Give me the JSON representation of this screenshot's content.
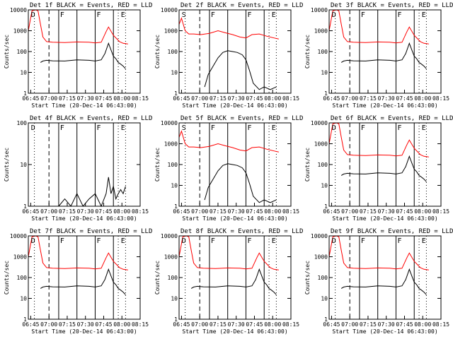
{
  "chart_data": [
    {
      "title": "Det 1f BLACK = Events, RED = LLD",
      "ylabel": "Counts/sec",
      "xlabel": "Start Time (20-Dec-14 06:43:00)",
      "type": "line",
      "yscale": "log",
      "ylim": [
        1,
        10000
      ],
      "yticks": [
        "1",
        "10",
        "100",
        "1000",
        "10000"
      ],
      "xticks": [
        "06:45",
        "07:00",
        "07:15",
        "07:30",
        "07:45",
        "08:00",
        "08:15"
      ],
      "markers": [
        "D",
        "F",
        "F",
        "E"
      ],
      "series": [
        {
          "color": "#ff0000",
          "x": [
            0,
            3,
            6,
            8,
            10,
            12,
            15,
            20,
            30,
            40,
            50,
            55,
            60,
            64,
            66,
            70,
            75,
            78,
            80,
            82
          ],
          "values": [
            1000,
            9000,
            10000,
            9000,
            2000,
            500,
            300,
            280,
            270,
            290,
            280,
            260,
            280,
            900,
            1500,
            600,
            300,
            250,
            240,
            230
          ]
        },
        {
          "color": "#000000",
          "x": [
            10,
            12,
            15,
            20,
            30,
            40,
            50,
            55,
            60,
            63,
            66,
            68,
            70,
            72,
            74,
            76,
            78,
            80
          ],
          "values": [
            30,
            35,
            38,
            36,
            35,
            40,
            38,
            35,
            40,
            80,
            250,
            120,
            60,
            45,
            30,
            25,
            20,
            15
          ]
        }
      ]
    },
    {
      "title": "Det 2f BLACK = Events, RED = LLD",
      "ylabel": "Counts/sec",
      "xlabel": "Start Time (20-Dec-14 06:43:00)",
      "type": "line",
      "yscale": "log",
      "ylim": [
        1,
        10000
      ],
      "yticks": [
        "1",
        "10",
        "100",
        "1000",
        "10000"
      ],
      "xticks": [
        "06:45",
        "07:00",
        "07:15",
        "07:30",
        "07:45",
        "08:00",
        "08:15"
      ],
      "markers": [
        "S",
        "F",
        "F",
        "E"
      ],
      "series": [
        {
          "color": "#ff0000",
          "x": [
            0,
            2,
            5,
            8,
            12,
            18,
            25,
            32,
            38,
            44,
            50,
            55,
            60,
            66,
            72,
            78,
            82
          ],
          "values": [
            2000,
            4000,
            1000,
            700,
            700,
            650,
            750,
            1000,
            800,
            650,
            500,
            450,
            650,
            700,
            550,
            450,
            400
          ]
        },
        {
          "color": "#000000",
          "x": [
            21,
            24,
            28,
            32,
            36,
            40,
            44,
            48,
            52,
            55,
            58,
            61,
            66,
            70,
            75,
            80
          ],
          "values": [
            2,
            8,
            20,
            50,
            90,
            110,
            100,
            90,
            70,
            40,
            12,
            3,
            1.5,
            2,
            1.5,
            2
          ]
        }
      ]
    },
    {
      "title": "Det 3f BLACK = Events, RED = LLD",
      "ylabel": "Counts/sec",
      "xlabel": "Start Time (20-Dec-14 06:43:00)",
      "type": "line",
      "yscale": "log",
      "ylim": [
        1,
        10000
      ],
      "yticks": [
        "1",
        "10",
        "100",
        "1000",
        "10000"
      ],
      "xticks": [
        "06:45",
        "07:00",
        "07:15",
        "07:30",
        "07:45",
        "08:00",
        "08:15"
      ],
      "markers": [
        "D",
        "F",
        "F",
        "E"
      ],
      "series": [
        {
          "color": "#ff0000",
          "x": [
            0,
            3,
            6,
            8,
            10,
            12,
            15,
            20,
            30,
            40,
            50,
            55,
            60,
            64,
            66,
            70,
            75,
            78,
            80,
            82
          ],
          "values": [
            1000,
            9000,
            10000,
            9000,
            2000,
            500,
            300,
            280,
            270,
            290,
            280,
            260,
            280,
            900,
            1500,
            600,
            300,
            250,
            240,
            230
          ]
        },
        {
          "color": "#000000",
          "x": [
            10,
            12,
            15,
            20,
            30,
            40,
            50,
            55,
            60,
            63,
            66,
            68,
            70,
            72,
            74,
            76,
            78,
            80
          ],
          "values": [
            30,
            35,
            38,
            36,
            35,
            40,
            38,
            35,
            40,
            80,
            250,
            120,
            60,
            45,
            30,
            25,
            20,
            15
          ]
        }
      ]
    },
    {
      "title": "Det 4f BLACK = Events, RED = LLD",
      "ylabel": "Counts/sec",
      "xlabel": "Start Time (20-Dec-14 06:43:00)",
      "type": "line",
      "yscale": "log",
      "ylim": [
        1,
        100
      ],
      "yticks": [
        "1",
        "10",
        "100"
      ],
      "xticks": [
        "06:45",
        "07:00",
        "07:15",
        "07:30",
        "07:45",
        "08:00",
        "08:15"
      ],
      "markers": [
        "D",
        "F",
        "F",
        "E"
      ],
      "series": [
        {
          "color": "#000000",
          "x": [
            25,
            30,
            35,
            40,
            45,
            50,
            55,
            60,
            64,
            66,
            68,
            70,
            72,
            74,
            76,
            78,
            80
          ],
          "values": [
            1,
            1.5,
            1,
            2,
            1,
            1.5,
            2,
            1,
            2,
            5,
            2,
            3,
            1.5,
            2,
            2.5,
            2,
            3
          ]
        }
      ]
    },
    {
      "title": "Det 5f BLACK = Events, RED = LLD",
      "ylabel": "Counts/sec",
      "xlabel": "Start Time (20-Dec-14 06:43:00)",
      "type": "line",
      "yscale": "log",
      "ylim": [
        1,
        10000
      ],
      "yticks": [
        "1",
        "10",
        "100",
        "1000",
        "10000"
      ],
      "xticks": [
        "06:45",
        "07:00",
        "07:15",
        "07:30",
        "07:45",
        "08:00",
        "08:15"
      ],
      "markers": [
        "S",
        "F",
        "F",
        "E"
      ],
      "series": [
        {
          "color": "#ff0000",
          "x": [
            0,
            2,
            5,
            8,
            12,
            18,
            25,
            32,
            38,
            44,
            50,
            55,
            60,
            66,
            72,
            78,
            82
          ],
          "values": [
            2000,
            4000,
            1000,
            700,
            700,
            650,
            750,
            1000,
            800,
            650,
            500,
            450,
            650,
            700,
            550,
            450,
            400
          ]
        },
        {
          "color": "#000000",
          "x": [
            21,
            24,
            28,
            32,
            36,
            40,
            44,
            48,
            52,
            55,
            58,
            61,
            66,
            70,
            75,
            80
          ],
          "values": [
            2,
            8,
            20,
            50,
            90,
            110,
            100,
            90,
            70,
            40,
            12,
            3,
            1.5,
            2,
            1.5,
            2
          ]
        }
      ]
    },
    {
      "title": "Det 6f BLACK = Events, RED = LLD",
      "ylabel": "Counts/sec",
      "xlabel": "Start Time (20-Dec-14 06:43:00)",
      "type": "line",
      "yscale": "log",
      "ylim": [
        1,
        10000
      ],
      "yticks": [
        "1",
        "10",
        "100",
        "1000",
        "10000"
      ],
      "xticks": [
        "06:45",
        "07:00",
        "07:15",
        "07:30",
        "07:45",
        "08:00",
        "08:15"
      ],
      "markers": [
        "D",
        "F",
        "F",
        "E"
      ],
      "series": [
        {
          "color": "#ff0000",
          "x": [
            0,
            3,
            6,
            8,
            10,
            12,
            15,
            20,
            30,
            40,
            50,
            55,
            60,
            64,
            66,
            70,
            75,
            78,
            80,
            82
          ],
          "values": [
            1000,
            9000,
            10000,
            9000,
            2000,
            500,
            300,
            280,
            270,
            290,
            280,
            260,
            280,
            900,
            1500,
            600,
            300,
            250,
            240,
            230
          ]
        },
        {
          "color": "#000000",
          "x": [
            10,
            12,
            15,
            20,
            30,
            40,
            50,
            55,
            60,
            63,
            66,
            68,
            70,
            72,
            74,
            76,
            78,
            80
          ],
          "values": [
            30,
            35,
            38,
            36,
            35,
            40,
            38,
            35,
            40,
            80,
            250,
            120,
            60,
            45,
            30,
            25,
            20,
            15
          ]
        }
      ]
    },
    {
      "title": "Det 7f BLACK = Events, RED = LLD",
      "ylabel": "Counts/sec",
      "xlabel": "Start Time (20-Dec-14 06:43:00)",
      "type": "line",
      "yscale": "log",
      "ylim": [
        1,
        10000
      ],
      "yticks": [
        "1",
        "10",
        "100",
        "1000",
        "10000"
      ],
      "xticks": [
        "06:45",
        "07:00",
        "07:15",
        "07:30",
        "07:45",
        "08:00",
        "08:15"
      ],
      "markers": [
        "D",
        "F",
        "F",
        "E"
      ],
      "series": [
        {
          "color": "#ff0000",
          "x": [
            0,
            3,
            6,
            8,
            10,
            12,
            15,
            20,
            30,
            40,
            50,
            55,
            60,
            64,
            66,
            70,
            75,
            78,
            80,
            82
          ],
          "values": [
            1000,
            9000,
            10000,
            9000,
            2000,
            500,
            300,
            280,
            270,
            290,
            280,
            260,
            280,
            900,
            1500,
            600,
            300,
            250,
            240,
            230
          ]
        },
        {
          "color": "#000000",
          "x": [
            10,
            12,
            15,
            20,
            30,
            40,
            50,
            55,
            60,
            63,
            66,
            68,
            70,
            72,
            74,
            76,
            78,
            80
          ],
          "values": [
            30,
            35,
            38,
            36,
            35,
            40,
            38,
            35,
            40,
            80,
            250,
            120,
            60,
            45,
            30,
            25,
            20,
            15
          ]
        }
      ]
    },
    {
      "title": "Det 8f BLACK = Events, RED = LLD",
      "ylabel": "Counts/sec",
      "xlabel": "Start Time (20-Dec-14 06:43:00)",
      "type": "line",
      "yscale": "log",
      "ylim": [
        1,
        10000
      ],
      "yticks": [
        "1",
        "10",
        "100",
        "1000",
        "10000"
      ],
      "xticks": [
        "06:45",
        "07:00",
        "07:15",
        "07:30",
        "07:45",
        "08:00",
        "08:15"
      ],
      "markers": [
        "D",
        "F",
        "F",
        "E"
      ],
      "series": [
        {
          "color": "#ff0000",
          "x": [
            0,
            3,
            6,
            8,
            10,
            12,
            15,
            20,
            30,
            40,
            50,
            55,
            60,
            64,
            66,
            70,
            75,
            78,
            80,
            82
          ],
          "values": [
            1000,
            9000,
            10000,
            9000,
            2000,
            500,
            300,
            280,
            270,
            290,
            280,
            260,
            280,
            900,
            1500,
            600,
            300,
            250,
            240,
            230
          ]
        },
        {
          "color": "#000000",
          "x": [
            10,
            12,
            15,
            20,
            30,
            40,
            50,
            55,
            60,
            63,
            66,
            68,
            70,
            72,
            74,
            76,
            78,
            80
          ],
          "values": [
            30,
            35,
            38,
            36,
            35,
            40,
            38,
            35,
            40,
            80,
            250,
            120,
            60,
            45,
            30,
            25,
            20,
            15
          ]
        }
      ]
    },
    {
      "title": "Det 9f BLACK = Events, RED = LLD",
      "ylabel": "Counts/sec",
      "xlabel": "Start Time (20-Dec-14 06:43:00)",
      "type": "line",
      "yscale": "log",
      "ylim": [
        1,
        10000
      ],
      "yticks": [
        "1",
        "10",
        "100",
        "1000",
        "10000"
      ],
      "xticks": [
        "06:45",
        "07:00",
        "07:15",
        "07:30",
        "07:45",
        "08:00",
        "08:15"
      ],
      "markers": [
        "D",
        "F",
        "F",
        "E"
      ],
      "series": [
        {
          "color": "#ff0000",
          "x": [
            0,
            3,
            6,
            8,
            10,
            12,
            15,
            20,
            30,
            40,
            50,
            55,
            60,
            64,
            66,
            70,
            75,
            78,
            80,
            82
          ],
          "values": [
            1000,
            9000,
            10000,
            9000,
            2000,
            500,
            300,
            280,
            270,
            290,
            280,
            260,
            280,
            900,
            1500,
            600,
            300,
            250,
            240,
            230
          ]
        },
        {
          "color": "#000000",
          "x": [
            10,
            12,
            15,
            20,
            30,
            40,
            50,
            55,
            60,
            63,
            66,
            68,
            70,
            72,
            74,
            76,
            78,
            80
          ],
          "values": [
            30,
            35,
            38,
            36,
            35,
            40,
            38,
            35,
            40,
            80,
            250,
            120,
            60,
            45,
            30,
            25,
            20,
            15
          ]
        }
      ]
    }
  ]
}
